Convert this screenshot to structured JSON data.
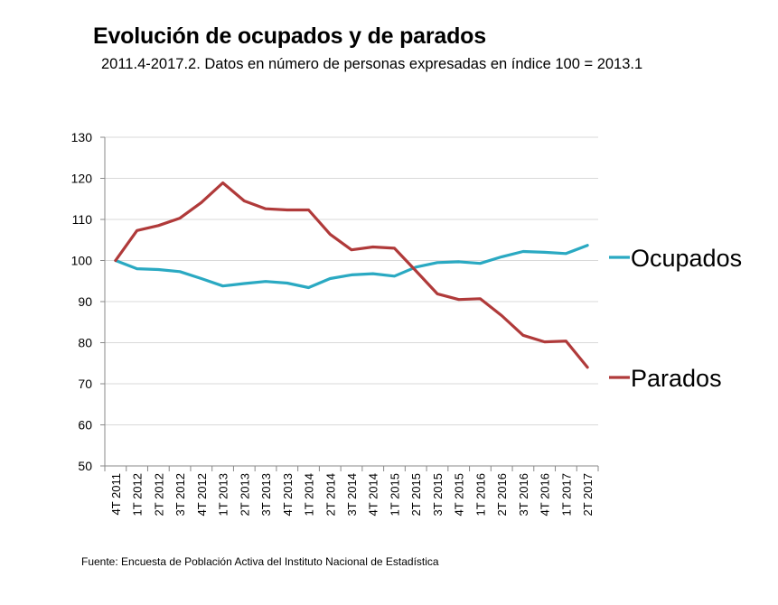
{
  "chart_data": {
    "type": "line",
    "title": "Evolución de ocupados y de parados",
    "subtitle": "2011.4-2017.2. Datos en número de personas expresadas en índice 100 = 2013.1",
    "source": "Fuente: Encuesta de Población Activa del Instituto Nacional de Estadística",
    "xlabel": "",
    "ylabel": "",
    "ylim": [
      50,
      130
    ],
    "yticks": [
      130,
      120,
      110,
      100,
      90,
      80,
      70,
      60,
      50
    ],
    "grid": true,
    "legend_placement": "right, at line ends",
    "categories": [
      "4T 2011",
      "1T 2012",
      "2T 2012",
      "3T 2012",
      "4T 2012",
      "1T 2013",
      "2T 2013",
      "3T 2013",
      "4T 2013",
      "1T 2014",
      "2T 2014",
      "3T 2014",
      "4T 2014",
      "1T 2015",
      "2T 2015",
      "3T 2015",
      "4T 2015",
      "1T 2016",
      "2T 2016",
      "3T 2016",
      "4T 2016",
      "1T 2017",
      "2T 2017"
    ],
    "series": [
      {
        "name": "Ocupados",
        "color": "#2aa9c2",
        "values": [
          100,
          98.0,
          97.8,
          97.3,
          95.6,
          93.8,
          94.4,
          94.9,
          94.5,
          93.4,
          95.6,
          96.5,
          96.8,
          96.2,
          98.4,
          99.5,
          99.7,
          99.3,
          100.9,
          102.2,
          102.0,
          101.7,
          103.7
        ]
      },
      {
        "name": "Parados",
        "color": "#b03a3a",
        "values": [
          100,
          107.3,
          108.5,
          110.3,
          114.1,
          118.9,
          114.5,
          112.6,
          112.3,
          112.3,
          106.4,
          102.6,
          103.3,
          103.0,
          97.5,
          91.9,
          90.5,
          90.7,
          86.6,
          81.8,
          80.2,
          80.4,
          74.0
        ]
      }
    ]
  }
}
